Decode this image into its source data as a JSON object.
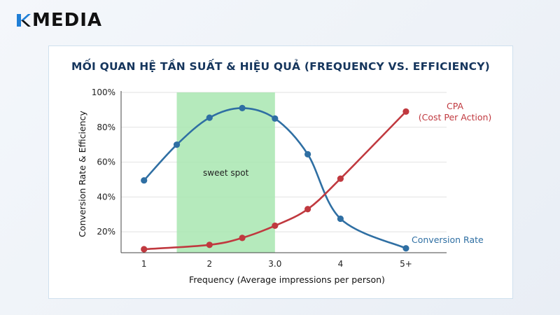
{
  "brand": {
    "name": "MEDIA",
    "accent": "#1f7fd6"
  },
  "chart_data": {
    "type": "line",
    "title": "MỐI QUAN HỆ TẦN SUẤT & HIỆU QUẢ (FREQUENCY VS. EFFICIENCY)",
    "xlabel": "Frequency (Average impressions per person)",
    "ylabel": "Conversion Rate & Efficiency",
    "x_ticks": [
      "1",
      "2",
      "3.0",
      "4",
      "5+"
    ],
    "x_tick_values": [
      1,
      2,
      3,
      4,
      5
    ],
    "y_ticks": [
      "20%",
      "40%",
      "60%",
      "80%",
      "100%"
    ],
    "y_tick_values": [
      20,
      40,
      60,
      80,
      100
    ],
    "xlim": [
      0.65,
      5.3
    ],
    "ylim": [
      8,
      100
    ],
    "grid": true,
    "highlight": {
      "label": "sweet spot",
      "x_start": 1.5,
      "x_end": 3.0,
      "color": "#a8e6b0"
    },
    "series": [
      {
        "name": "Conversion Rate",
        "color": "#2f6fa3",
        "x": [
          1,
          1.5,
          2,
          2.5,
          3,
          3.5,
          4,
          5
        ],
        "y": [
          49.5,
          70,
          85.5,
          91,
          85,
          64.5,
          27.5,
          10.5
        ]
      },
      {
        "name": "CPA\n(Cost Per Action)",
        "color": "#c0393f",
        "x": [
          1,
          2,
          2.5,
          3,
          3.5,
          4,
          5
        ],
        "y": [
          10,
          12.5,
          16.5,
          23.5,
          33,
          50.5,
          89
        ]
      }
    ]
  }
}
